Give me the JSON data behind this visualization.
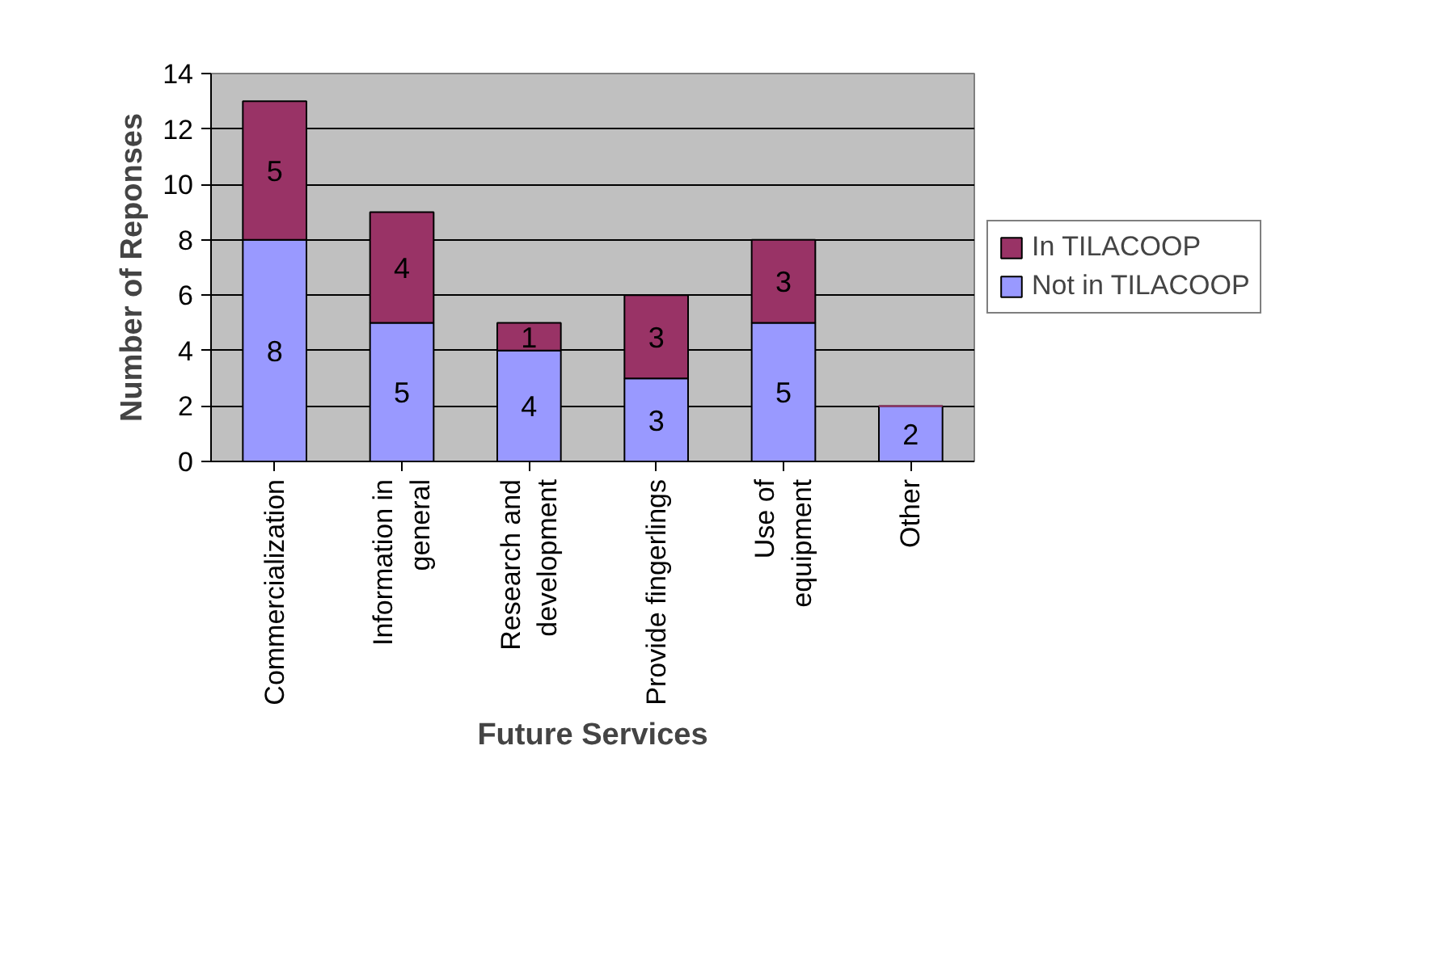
{
  "chart_data": {
    "type": "bar",
    "stacked": true,
    "xlabel": "Future Services",
    "ylabel": "Number of Reponses",
    "categories": [
      "Commercialization",
      "Information in general",
      "Research and development",
      "Provide fingerlings",
      "Use of equipment",
      "Other"
    ],
    "series": [
      {
        "name": "Not in TILACOOP",
        "color": "#9999ff",
        "values": [
          8,
          5,
          4,
          3,
          5,
          2
        ],
        "value_labels": [
          "8",
          "5",
          "4",
          "3",
          "5",
          "2"
        ]
      },
      {
        "name": "In TILACOOP",
        "color": "#993366",
        "values": [
          5,
          4,
          1,
          3,
          3,
          0
        ],
        "value_labels": [
          "5",
          "4",
          "1",
          "3",
          "3",
          null
        ]
      }
    ],
    "ylim": [
      0,
      14
    ],
    "yticks": [
      0,
      2,
      4,
      6,
      8,
      10,
      12,
      14
    ],
    "grid": "y",
    "legend": "right"
  }
}
